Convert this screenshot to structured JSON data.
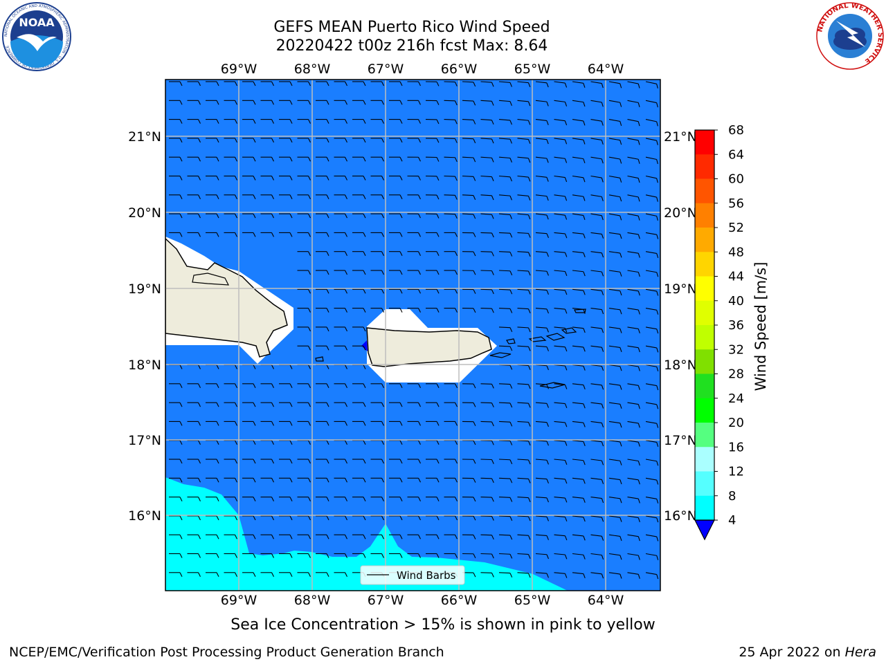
{
  "header": {
    "title_line1": "GEFS MEAN Puerto Rico Wind Speed",
    "title_line2": "20220422 t00z 216h fcst   Max: 8.64"
  },
  "logos": {
    "left_text": "NOAA",
    "left_ring_text": "NATIONAL OCEANIC AND ATMOSPHERIC ADMINISTRATION · U.S. DEPARTMENT OF COMMERCE",
    "right_ring_text": "NATIONAL WEATHER SERVICE"
  },
  "map": {
    "lon_labels": [
      "69°W",
      "68°W",
      "67°W",
      "66°W",
      "65°W",
      "64°W"
    ],
    "lat_labels": [
      "21°N",
      "20°N",
      "19°N",
      "18°N",
      "17°N",
      "16°N"
    ],
    "legend_label": "Wind Barbs",
    "colors": {
      "ocean": "#1a7eff",
      "cyan": "#00ffff",
      "land": "#eeecdc",
      "mask": "#ffffff"
    }
  },
  "colorbar": {
    "label": "Wind Speed [m/s]",
    "ticks": [
      "68",
      "64",
      "60",
      "56",
      "52",
      "48",
      "44",
      "40",
      "36",
      "32",
      "28",
      "24",
      "20",
      "16",
      "12",
      "8",
      "4"
    ],
    "colors": [
      "#ff0000",
      "#ff2a00",
      "#ff5500",
      "#ff8000",
      "#ffaa00",
      "#ffd500",
      "#ffff00",
      "#e0ff00",
      "#c0ff00",
      "#80e000",
      "#20e020",
      "#00ff00",
      "#55ff80",
      "#aaffff",
      "#55ffff",
      "#00ffff",
      "#1a7eff"
    ],
    "under_color": "#0000ff"
  },
  "caption": "Sea Ice Concentration > 15% is shown in pink to yellow",
  "footer": {
    "left": "NCEP/EMC/Verification Post Processing Product Generation Branch",
    "right_prefix": "25 Apr 2022 on ",
    "right_host": "Hera"
  }
}
